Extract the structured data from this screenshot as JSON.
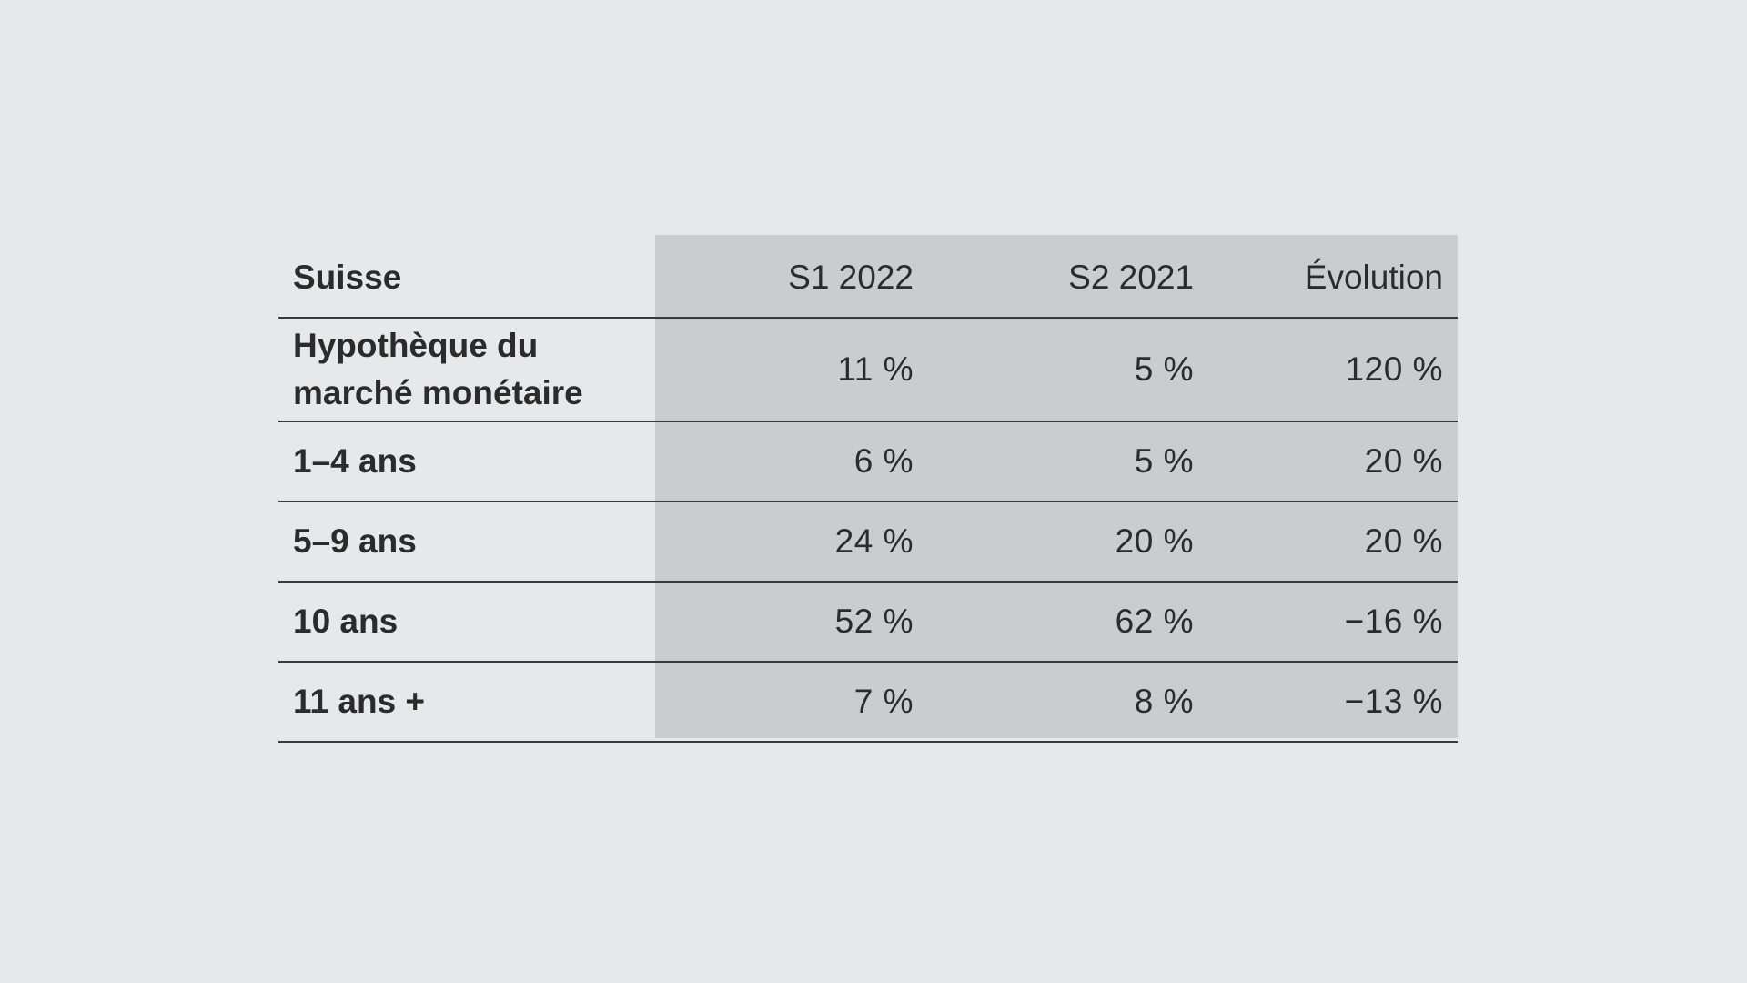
{
  "chart_data": {
    "type": "table",
    "columns": [
      "Suisse",
      "S1 2022",
      "S2 2021",
      "Évolution"
    ],
    "rows": [
      {
        "label": "Hypothèque du marché monétaire",
        "label_lines": [
          "Hypothèque du",
          "marché monétaire"
        ],
        "values": [
          "11 %",
          "5 %",
          "120 %"
        ]
      },
      {
        "label": "1–4 ans",
        "values": [
          "6 %",
          "5 %",
          "20 %"
        ]
      },
      {
        "label": "5–9 ans",
        "values": [
          "24 %",
          "20 %",
          "20 %"
        ]
      },
      {
        "label": "10 ans",
        "values": [
          "52 %",
          "62 %",
          "−16 %"
        ]
      },
      {
        "label": "11 ans +",
        "values": [
          "7 %",
          "8 %",
          "−13 %"
        ]
      }
    ],
    "numeric": {
      "S1 2022": [
        11,
        6,
        24,
        52,
        7
      ],
      "S2 2021": [
        5,
        5,
        20,
        62,
        8
      ],
      "Évolution": [
        120,
        20,
        20,
        -16,
        -13
      ]
    },
    "colors": {
      "background": "#e7e8ea",
      "shaded_columns": "#cbcccf",
      "text": "#2b2b2b",
      "rule": "#3a3a3a"
    }
  }
}
